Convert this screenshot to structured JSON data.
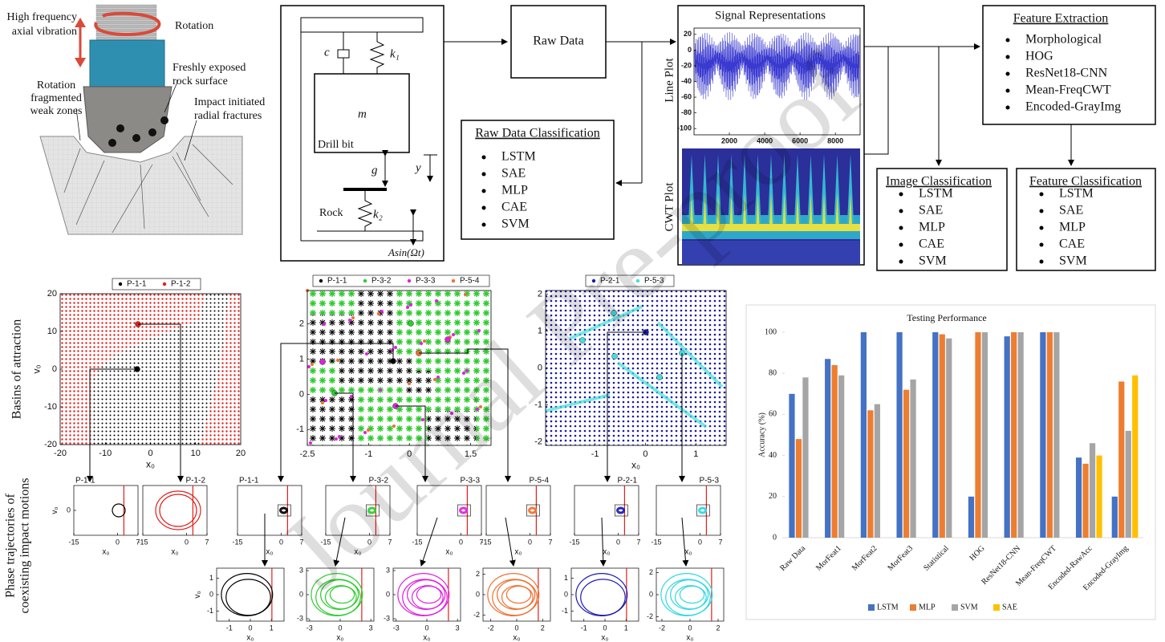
{
  "illustration": {
    "rotation": "Rotation",
    "vibration": [
      "High frequency",
      "axial vibration"
    ],
    "fresh_surface": [
      "Freshly exposed",
      "rock surface"
    ],
    "weak_zones": [
      "Rotation",
      "fragmented",
      "weak zones"
    ],
    "fractures": [
      "Impact initiated",
      "radial fractures"
    ]
  },
  "model": {
    "damper": "c",
    "spring_top": "k₁",
    "mass": "m",
    "mass_name": "Drill bit",
    "gap": "g",
    "displacement": "y",
    "rock": "Rock",
    "spring_rock": "k₂",
    "excitation": "Asin(Ωt)"
  },
  "flow": {
    "raw_data": "Raw Data",
    "signals": {
      "title": "Signal Representations",
      "line_plot": "Line Plot",
      "cwt_plot": "CWT Plot",
      "xlim": [
        0,
        9400
      ],
      "xticks": [
        2000,
        4000,
        6000,
        8000
      ],
      "ylim": [
        -108,
        28
      ],
      "yticks": [
        20,
        0,
        -20,
        -40,
        -60,
        -80,
        -100
      ]
    },
    "raw_classification": {
      "title": "Raw Data Classification",
      "items": [
        "LSTM",
        "SAE",
        "MLP",
        "CAE",
        "SVM"
      ]
    },
    "feature_extraction": {
      "title": "Feature Extraction",
      "items": [
        "Morphological",
        "HOG",
        "ResNet18-CNN",
        "Mean-FreqCWT",
        "Encoded-GrayImg"
      ]
    },
    "image_classification": {
      "title": "Image Classification",
      "items": [
        "LSTM",
        "SAE",
        "MLP",
        "CAE",
        "SVM"
      ]
    },
    "feature_classification": {
      "title": "Feature Classification",
      "items": [
        "LSTM",
        "SAE",
        "MLP",
        "CAE",
        "SVM"
      ]
    }
  },
  "dynamics": {
    "basins_label": "Basins of attraction",
    "phase_label": [
      "Phase trajectories of",
      "coexisting impact motions"
    ],
    "basins": [
      {
        "legend": [
          {
            "name": "P-1-1",
            "color": "#000000"
          },
          {
            "name": "P-1-2",
            "color": "#e0201b"
          }
        ],
        "xlim": [
          -20,
          20
        ],
        "ylim": [
          -20,
          20
        ],
        "xticks": [
          -20,
          -10,
          0,
          10,
          20
        ],
        "yticks": [
          20,
          10,
          0,
          -10,
          -20
        ],
        "xlabel": "x₀",
        "ylabel": "v₀"
      },
      {
        "legend": [
          {
            "name": "P-1-1",
            "color": "#000000"
          },
          {
            "name": "P-3-2",
            "color": "#2ecc2e"
          },
          {
            "name": "P-3-3",
            "color": "#e020e0"
          },
          {
            "name": "P-5-4",
            "color": "#f07030"
          }
        ],
        "xlim": [
          -2.5,
          2.0
        ],
        "ylim": [
          -1.45,
          2.95
        ],
        "xticks": [
          -2.5,
          -1,
          0,
          1.5
        ],
        "yticks": [
          2,
          1,
          0,
          -1
        ]
      },
      {
        "legend": [
          {
            "name": "P-2-1",
            "color": "#1a1aa0"
          },
          {
            "name": "P-5-3",
            "color": "#40e0e0"
          }
        ],
        "xlim": [
          -1.98,
          1.6
        ],
        "ylim": [
          -2.1,
          2.1
        ],
        "xticks": [
          -1,
          0,
          1
        ],
        "yticks": [
          2,
          1,
          0,
          -1,
          -2
        ],
        "xlabel": "x₀"
      }
    ],
    "phase_small": [
      {
        "label": "P-1-1",
        "color": "#000000",
        "xlim": [
          -15,
          7
        ],
        "xticks": [
          -15,
          0,
          7
        ],
        "xlabel": "x₀",
        "ylim": [
          -6,
          6
        ],
        "yticks": [
          0
        ],
        "ylabel": "v₀"
      },
      {
        "label": "P-1-2",
        "color": "#e0201b",
        "xlim": [
          -15,
          7
        ],
        "xticks": [
          -15,
          0,
          7
        ],
        "xlabel": "x₀"
      },
      {
        "label": "P-1-1",
        "color": "#000000",
        "xlim": [
          -15,
          7
        ],
        "xticks": [
          -15,
          0,
          7
        ],
        "xlabel": "x₀"
      },
      {
        "label": "P-3-2",
        "color": "#2ecc2e",
        "xlim": [
          -15,
          7
        ],
        "xticks": [
          -15,
          0,
          7
        ],
        "xlabel": "x₀"
      },
      {
        "label": "P-3-3",
        "color": "#e020e0",
        "xlim": [
          -15,
          7
        ],
        "xticks": [
          -15,
          0,
          7
        ],
        "xlabel": "x₀"
      },
      {
        "label": "P-5-4",
        "color": "#f07030",
        "xlim": [
          -15,
          7
        ],
        "xticks": [
          -15,
          0,
          7
        ],
        "xlabel": "x₀"
      },
      {
        "label": "P-2-1",
        "color": "#1a1ab0",
        "xlim": [
          -15,
          7
        ],
        "xticks": [
          -15,
          0,
          7
        ],
        "xlabel": "x₀"
      },
      {
        "label": "P-5-3",
        "color": "#30d8e0",
        "xlim": [
          -15,
          7
        ],
        "xticks": [
          -15,
          0,
          7
        ],
        "xlabel": "x₀"
      }
    ],
    "phase_large": [
      {
        "color": "#000000",
        "xlim": [
          -1.6,
          1.6
        ],
        "xticks": [
          -1,
          0,
          1
        ],
        "ylim": [
          -1.6,
          1.6
        ],
        "yticks": [
          1,
          0,
          -1
        ],
        "xlabel": "x₀",
        "ylabel": "v₀"
      },
      {
        "color": "#2ecc2e",
        "xlim": [
          -3.3,
          3.3
        ],
        "xticks": [
          -3,
          0,
          3
        ],
        "ylim": [
          -3.3,
          3.3
        ],
        "yticks": [
          3,
          0,
          -3
        ],
        "xlabel": "x₀"
      },
      {
        "color": "#e020e0",
        "xlim": [
          -3.3,
          3.3
        ],
        "xticks": [
          -3,
          0,
          3
        ],
        "ylim": [
          -3.3,
          3.3
        ],
        "yticks": [
          3,
          0,
          -3
        ],
        "xlabel": "x₀"
      },
      {
        "color": "#f07030",
        "xlim": [
          -2.6,
          2.6
        ],
        "xticks": [
          -2,
          0,
          2
        ],
        "ylim": [
          -2.6,
          2.6
        ],
        "yticks": [
          2,
          0,
          -2
        ],
        "xlabel": "x₀"
      },
      {
        "color": "#1a1ab0",
        "xlim": [
          -1.6,
          1.6
        ],
        "xticks": [
          -1,
          0,
          1
        ],
        "ylim": [
          -1.6,
          1.6
        ],
        "yticks": [
          1,
          0,
          -1
        ],
        "xlabel": "x₀"
      },
      {
        "color": "#30d8e0",
        "xlim": [
          -2.4,
          2.4
        ],
        "xticks": [
          -2,
          0,
          2
        ],
        "ylim": [
          -2.4,
          2.4
        ],
        "yticks": [
          2,
          0,
          -2
        ],
        "xlabel": "x₀"
      }
    ]
  },
  "chart_data": {
    "type": "bar",
    "title": "Testing Performance",
    "y_label": "Accuracy (%)",
    "categories": [
      "Raw Data",
      "MorFeat1",
      "MorFeat2",
      "MorFeat3",
      "Statistical",
      "HOG",
      "ResNet18-CNN",
      "Mean-FreqCWT",
      "Encoded-RawAcc",
      "Encoded-GrayImg"
    ],
    "series": [
      {
        "name": "LSTM",
        "color": "#4472c4",
        "values": [
          70,
          87,
          100,
          100,
          100,
          20,
          98,
          100,
          39,
          20
        ]
      },
      {
        "name": "MLP",
        "color": "#ed7d31",
        "values": [
          48,
          84,
          62,
          72,
          99,
          100,
          100,
          100,
          36,
          76
        ]
      },
      {
        "name": "SVM",
        "color": "#a5a5a5",
        "values": [
          78,
          79,
          65,
          77,
          97,
          100,
          100,
          100,
          46,
          52
        ]
      },
      {
        "name": "SAE",
        "color": "#ffc000",
        "values": [
          null,
          null,
          null,
          null,
          null,
          null,
          null,
          null,
          40,
          79
        ]
      }
    ],
    "ylim": [
      0,
      100
    ],
    "yticks": [
      0,
      20,
      40,
      60,
      80,
      100
    ],
    "grid": false,
    "legend": "bottom"
  },
  "watermark": "Journal Pre-proof"
}
